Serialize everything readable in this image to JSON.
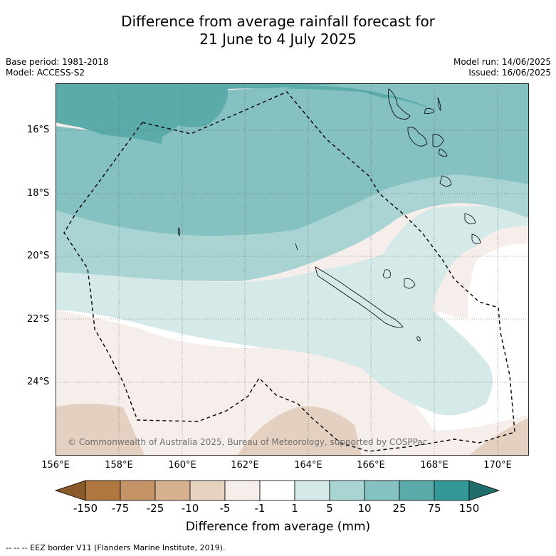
{
  "title_line1": "Difference from average rainfall forecast for",
  "title_line2": "21 June to 4 July 2025",
  "base_period": "Base period: 1981-2018",
  "model": "Model: ACCESS-S2",
  "model_run": "Model run: 14/06/2025",
  "issued": "Issued: 16/06/2025",
  "copyright": "© Commonwealth of Australia 2025, Bureau of Meteorology, supported by COSPPac",
  "footnote": "--  --  -- EEZ border V11 (Flanders Marine Institute, 2019).",
  "lat_labels": [
    "16°S",
    "18°S",
    "20°S",
    "22°S",
    "24°S"
  ],
  "lon_labels": [
    "156°E",
    "158°E",
    "160°E",
    "162°E",
    "164°E",
    "166°E",
    "168°E",
    "170°E"
  ],
  "colorbar": {
    "title": "Difference from average (mm)",
    "ticks": [
      "-150",
      "-75",
      "-25",
      "-10",
      "-5",
      "-1",
      "1",
      "5",
      "10",
      "25",
      "75",
      "150"
    ],
    "colors": [
      "#8a5a2b",
      "#b07840",
      "#c49468",
      "#d6b190",
      "#e7d2c0",
      "#f5eeea",
      "#ffffff",
      "#d4e9e8",
      "#aad4d4",
      "#84c1c0",
      "#5cabab",
      "#349996",
      "#1f6e6c"
    ]
  },
  "legend_items": [
    "EEZ border"
  ]
}
